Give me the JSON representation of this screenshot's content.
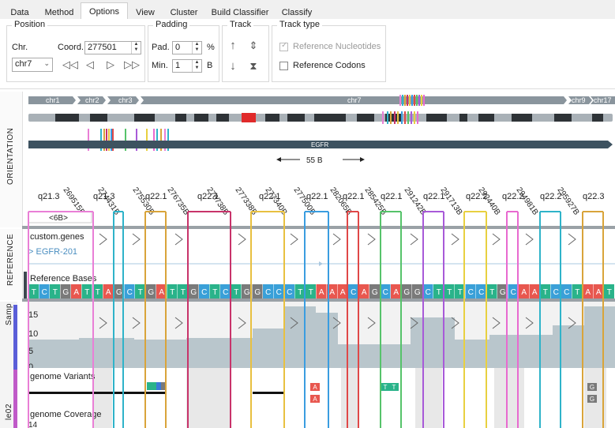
{
  "tabs": [
    "Data",
    "Method",
    "Options",
    "View",
    "Cluster",
    "Build Classifier",
    "Classify"
  ],
  "active_tab": "Options",
  "position": {
    "title": "Position",
    "chr_label": "Chr.",
    "chr_value": "chr7",
    "coord_label": "Coord.",
    "coord_value": "277501"
  },
  "padding": {
    "title": "Padding",
    "pad_label": "Pad.",
    "pad_value": "0",
    "pad_unit": "%",
    "min_label": "Min.",
    "min_value": "1",
    "min_unit": "B"
  },
  "track": {
    "title": "Track"
  },
  "track_type": {
    "title": "Track type",
    "options": [
      {
        "label": "Reference Nucleotides",
        "checked": true,
        "enabled": false
      },
      {
        "label": "Reference Codons",
        "checked": false,
        "enabled": true
      }
    ]
  },
  "chromosomes": [
    "chr1",
    "chr2",
    "chr3",
    "chr7",
    "chr9",
    "chr17"
  ],
  "gene_label": "EGFR",
  "span_label": "55 B",
  "side_labels": {
    "orientation": "ORIENTATION",
    "reference": "REFERENCE",
    "sample": "Samp",
    "sample2": "le02"
  },
  "bands": [
    "q21.3",
    "q21.3",
    "q22.1",
    "q22.1",
    "q22.1",
    "q22.1",
    "q22.1",
    "q22.1",
    "q22.1",
    "q22.2",
    "q22.2",
    "q22.2",
    "q22.3",
    "q22.3"
  ],
  "coords": [
    "269515B",
    "274431B",
    "275530B",
    "276735B",
    "276738B",
    "277338B",
    "277340B",
    "277500B",
    "282065B",
    "285425B",
    "291242B",
    "291713B",
    "292440B",
    "294981B",
    "295927B"
  ],
  "width_label": "<6B>",
  "tracks": {
    "genes": "custom.genes",
    "transcript": "> EGFR-201",
    "reference_bases": "Reference Bases",
    "variants": "genome Variants",
    "coverage": "genome Coverage"
  },
  "bases": [
    "T",
    "C",
    "T",
    "G",
    "A",
    "T",
    "T",
    "A",
    "G",
    "C",
    "T",
    "G",
    "A",
    "T",
    "T",
    "G",
    "C",
    "T",
    "C",
    "T",
    "G",
    "G",
    "C",
    "C",
    "C",
    "T",
    "T",
    "A",
    "A",
    "A",
    "C",
    "A",
    "G",
    "C",
    "A",
    "G",
    "G",
    "C",
    "T",
    "T",
    "T",
    "C",
    "C",
    "T",
    "G",
    "C",
    "A",
    "A",
    "T",
    "C",
    "C",
    "T",
    "A",
    "A",
    "T"
  ],
  "coverage_axis": [
    "15",
    "10",
    "5",
    "0"
  ],
  "coverage_axis2": "14",
  "variant_marks": [
    "A",
    "A",
    "T",
    "T",
    "G",
    "G"
  ],
  "colors": {
    "A": "#e8574f",
    "C": "#3aa0d8",
    "G": "#7a7a7a",
    "T": "#2ab38a"
  }
}
